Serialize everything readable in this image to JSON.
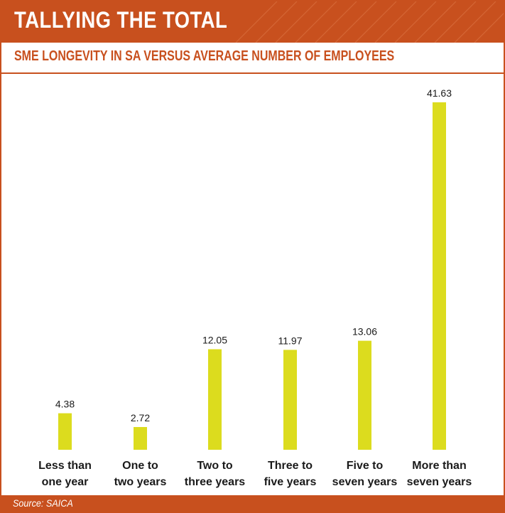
{
  "title": "TALLYING THE TOTAL",
  "subtitle": "SME LONGEVITY IN SA VERSUS AVERAGE NUMBER OF EMPLOYEES",
  "source": "Source: SAICA",
  "colors": {
    "brand": "#c8501e",
    "bar": "#dcdc1e",
    "text": "#1a1a1a"
  },
  "chart_data": {
    "type": "bar",
    "title": "SME LONGEVITY IN SA VERSUS AVERAGE NUMBER OF EMPLOYEES",
    "xlabel": "",
    "ylabel": "",
    "categories": [
      [
        "Less than",
        "one year"
      ],
      [
        "One to",
        "two years"
      ],
      [
        "Two to",
        "three years"
      ],
      [
        "Three to",
        "five years"
      ],
      [
        "Five to",
        "seven years"
      ],
      [
        "More than",
        "seven years"
      ]
    ],
    "values": [
      4.38,
      2.72,
      12.05,
      11.97,
      13.06,
      41.63
    ],
    "value_labels": [
      "4.38",
      "2.72",
      "12.05",
      "11.97",
      "13.06",
      "41.63"
    ],
    "ylim": [
      0,
      41.63
    ],
    "grid": false,
    "legend": "none"
  }
}
